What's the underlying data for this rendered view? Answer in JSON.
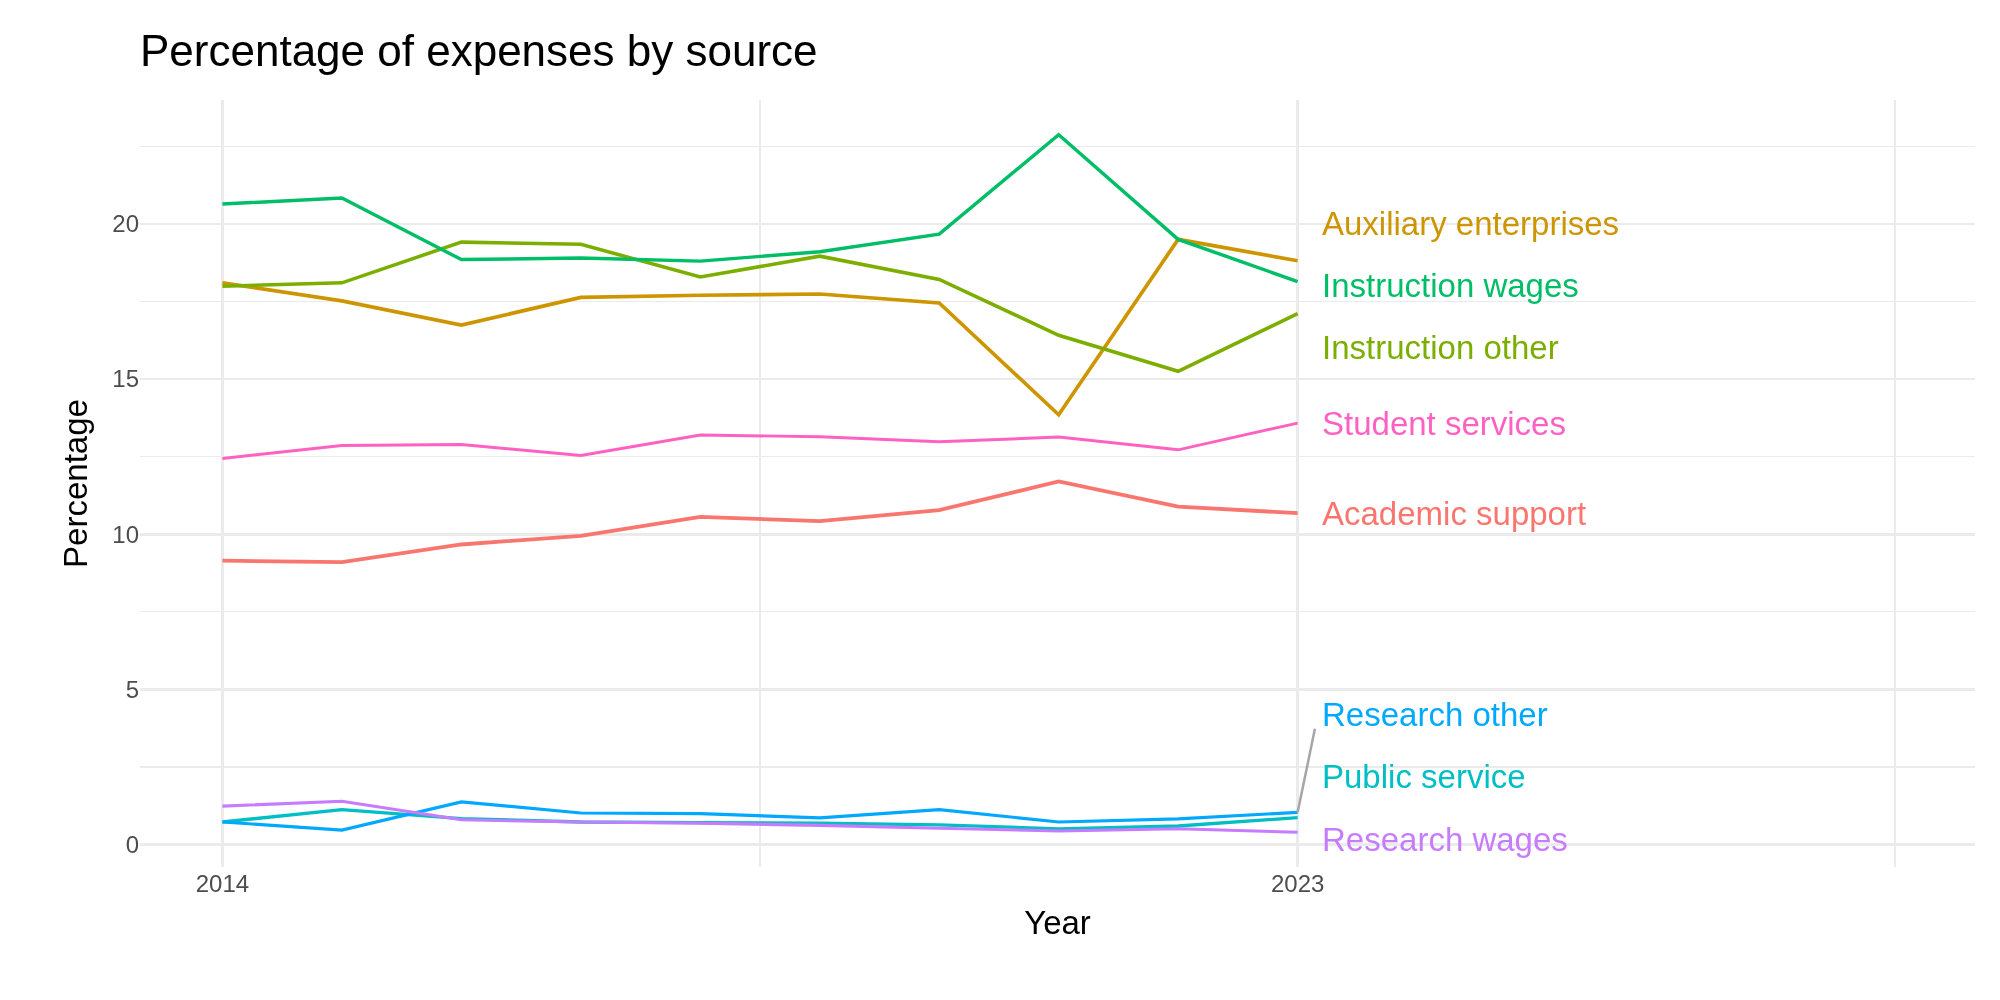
{
  "chart_data": {
    "type": "line",
    "title": "Percentage of expenses by source",
    "xlabel": "Year",
    "ylabel": "Percentage",
    "x": [
      2014,
      2015,
      2016,
      2017,
      2018,
      2019,
      2020,
      2021,
      2022,
      2023
    ],
    "xlim": [
      2013.31,
      2028.67
    ],
    "xticks": [
      2014,
      {
        "value": 2018.5,
        "label": null
      },
      2023,
      {
        "value": 2028,
        "label": null
      }
    ],
    "ylim": [
      -0.72,
      23.99
    ],
    "yticks": [
      0,
      {
        "value": 2.5,
        "label": null
      },
      5,
      {
        "value": 7.5,
        "label": null
      },
      10,
      {
        "value": 12.5,
        "label": null
      },
      15,
      {
        "value": 17.5,
        "label": null
      },
      20,
      {
        "value": 22.5,
        "label": null
      }
    ],
    "grid": true,
    "legend": false,
    "line_style": "solid",
    "marker": "none",
    "series": [
      {
        "name": "Academic support",
        "color": "#f8766d",
        "values": [
          9.15,
          9.1,
          9.67,
          9.95,
          10.56,
          10.42,
          10.78,
          11.7,
          10.89,
          10.68
        ]
      },
      {
        "name": "Auxiliary enterprises",
        "color": "#cd9600",
        "values": [
          18.1,
          17.52,
          16.74,
          17.63,
          17.7,
          17.74,
          17.45,
          13.85,
          19.5,
          18.81
        ]
      },
      {
        "name": "Instruction other",
        "color": "#7cae00",
        "values": [
          17.99,
          18.1,
          19.41,
          19.34,
          18.29,
          18.96,
          18.21,
          16.41,
          15.25,
          17.11
        ]
      },
      {
        "name": "Instruction wages",
        "color": "#00be67",
        "values": [
          20.64,
          20.83,
          18.85,
          18.9,
          18.8,
          19.1,
          19.67,
          22.87,
          19.5,
          18.14
        ]
      },
      {
        "name": "Public service",
        "color": "#00bfc4",
        "values": [
          0.73,
          1.13,
          0.84,
          0.73,
          0.71,
          0.69,
          0.64,
          0.51,
          0.6,
          0.87
        ]
      },
      {
        "name": "Research other",
        "color": "#00a9ff",
        "values": [
          0.73,
          0.47,
          1.38,
          1.02,
          1.0,
          0.86,
          1.13,
          0.73,
          0.83,
          1.04
        ]
      },
      {
        "name": "Research wages",
        "color": "#c77cff",
        "values": [
          1.24,
          1.4,
          0.8,
          0.73,
          0.69,
          0.62,
          0.53,
          0.44,
          0.51,
          0.4
        ]
      },
      {
        "name": "Student services",
        "color": "#ff61c3",
        "values": [
          12.44,
          12.86,
          12.89,
          12.54,
          13.2,
          13.14,
          12.98,
          13.13,
          12.72,
          13.58
        ]
      }
    ]
  }
}
